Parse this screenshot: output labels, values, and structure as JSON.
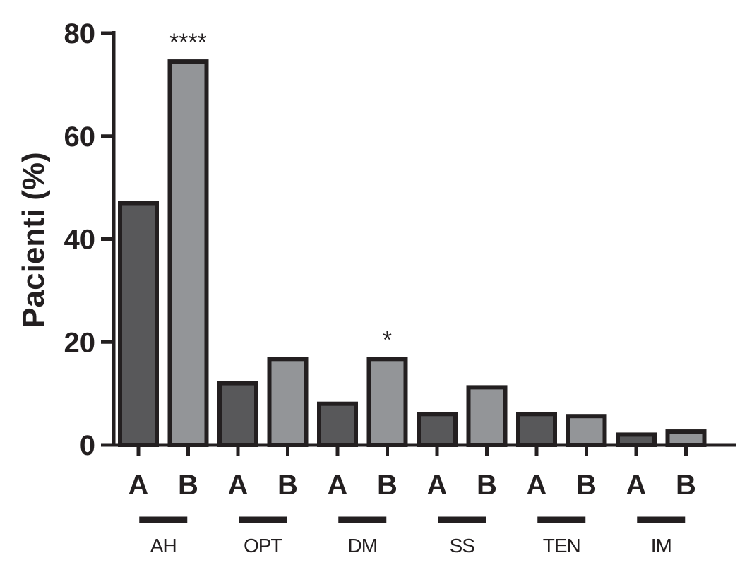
{
  "chart_data": {
    "type": "bar",
    "ylabel": "Pacienti (%)",
    "xlabel": "",
    "ylim": [
      0,
      80
    ],
    "yticks": [
      "0",
      "20",
      "40",
      "60",
      "80"
    ],
    "groups": [
      "AH",
      "OPT",
      "DM",
      "SS",
      "TEN",
      "IM"
    ],
    "series": [
      {
        "name": "A",
        "color": "#58585a",
        "values": [
          47,
          12,
          8,
          6,
          6,
          2
        ]
      },
      {
        "name": "B",
        "color": "#939598",
        "values": [
          74.5,
          16.7,
          16.7,
          11.2,
          5.6,
          2.6
        ]
      }
    ],
    "annotations": [
      "****",
      "",
      "*",
      "",
      "",
      ""
    ],
    "grid": false,
    "legend": "none",
    "edge_color": "#231f20"
  }
}
